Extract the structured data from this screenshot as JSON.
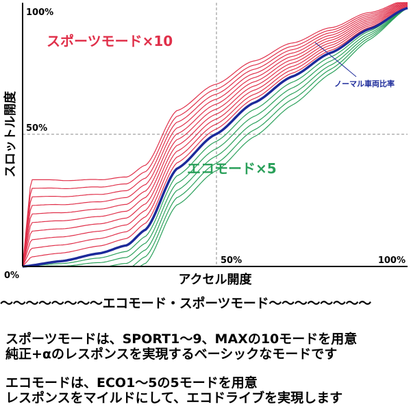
{
  "chart_data": {
    "type": "line",
    "xlabel": "アクセル開度",
    "ylabel": "スロットル開度",
    "origin_label": "0%",
    "x_ticks": [
      "50%",
      "100%"
    ],
    "y_ticks": [
      "50%",
      "100%"
    ],
    "xlim": [
      0,
      100
    ],
    "ylim": [
      0,
      100
    ],
    "grid": "dashed lines at 50%",
    "annotations": {
      "sport": "スポーツモード×10",
      "eco": "エコモード×5",
      "normal": "ノーマル車両比率"
    },
    "colors": {
      "sport": "#e0304a",
      "eco": "#2aa05a",
      "normal": "#1c2a9a"
    },
    "normal_curve": {
      "x": [
        0,
        10,
        20,
        27,
        32,
        40,
        50,
        60,
        70,
        80,
        90,
        100
      ],
      "y": [
        0,
        2,
        5,
        8,
        14,
        37,
        50,
        62,
        72,
        81,
        90,
        98
      ]
    },
    "sport_curves_count": 10,
    "eco_curves_count": 5
  },
  "description": {
    "divider": "～～～～～～～～エコモード・スポーツモード～～～～～～～～",
    "sport_line1": "スポーツモードは、SPORT1～9、MAXの10モードを用意",
    "sport_line2": "純正+αのレスポンスを実現するベーシックなモードです",
    "eco_line1": "エコモードは、ECO1～5の5モードを用意",
    "eco_line2": "レスポンスをマイルドにして、エコドライブを実現します"
  }
}
